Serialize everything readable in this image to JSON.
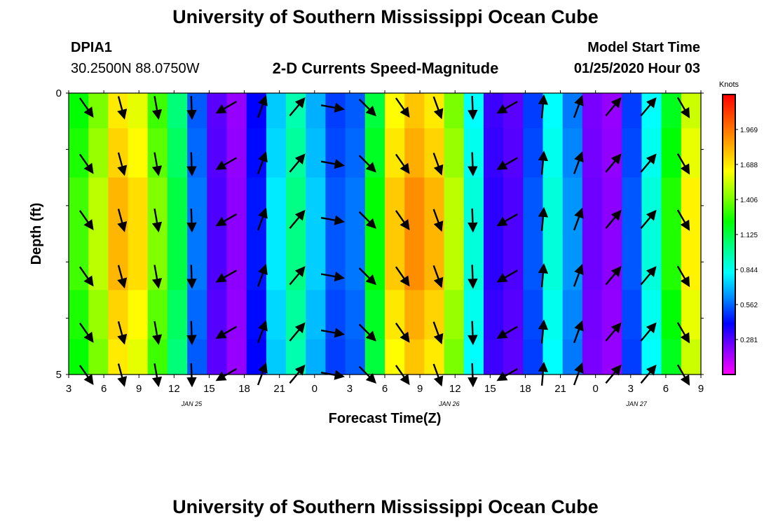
{
  "page": {
    "title_top": "University of Southern Mississippi Ocean Cube",
    "title_bottom": "University of Southern Mississippi Ocean Cube",
    "station_id": "DPIA1",
    "station_coords": "30.2500N 88.0750W",
    "plot_title": "2-D Currents Speed-Magnitude",
    "model_start_label": "Model Start Time",
    "model_start_value": "01/25/2020 Hour 03"
  },
  "chart_data": {
    "type": "heatmap",
    "title": "2-D Currents Speed-Magnitude",
    "xlabel": "Forecast Time(Z)",
    "ylabel": "Depth (ft)",
    "x_ticks": [
      "3",
      "6",
      "9",
      "12",
      "15",
      "18",
      "21",
      "0",
      "3",
      "6",
      "9",
      "12",
      "15",
      "18",
      "21",
      "0",
      "3",
      "6",
      "9"
    ],
    "x_range_hours": [
      0,
      54
    ],
    "date_labels": [
      {
        "text": "JAN 25",
        "at_hour": 10.5
      },
      {
        "text": "JAN 26",
        "at_hour": 32.5
      },
      {
        "text": "JAN 27",
        "at_hour": 48.5
      }
    ],
    "y_ticks": [
      "0",
      "5"
    ],
    "y_range_ft": [
      0,
      5
    ],
    "colorbar_units": "Knots",
    "colorbar_labels": [
      "1.969",
      "1.688",
      "1.406",
      "1.125",
      "0.844",
      "0.562",
      "0.281"
    ],
    "colorbar_range": [
      0,
      2.25
    ],
    "colors": [
      "#ff00ff",
      "#8800ff",
      "#0000ff",
      "#0088ff",
      "#00ffff",
      "#00ff88",
      "#00ff00",
      "#88ff00",
      "#ffff00",
      "#ffaa00",
      "#ff5500",
      "#ff0000"
    ],
    "depth_rows": [
      0.25,
      1.0,
      2.0,
      3.0,
      4.0,
      4.75
    ],
    "speed_columns_knots": [
      1.35,
      1.55,
      1.85,
      1.75,
      1.45,
      1.15,
      0.6,
      0.3,
      0.2,
      0.45,
      0.8,
      1.05,
      0.75,
      0.55,
      0.6,
      1.25,
      1.8,
      1.95,
      1.85,
      1.55,
      0.9,
      0.35,
      0.3,
      0.55,
      0.9,
      0.65,
      0.25,
      0.2,
      0.55,
      0.9,
      1.3,
      1.7
    ],
    "vector_hours": [
      0,
      3,
      6,
      9,
      12,
      15,
      18,
      21,
      24,
      27,
      30,
      33,
      36,
      39,
      42,
      45,
      48,
      51
    ],
    "vector_rows_depth_ft": [
      0.25,
      1.25,
      2.25,
      3.25,
      4.25,
      5.0
    ],
    "vector_directions_deg": [
      145,
      165,
      170,
      178,
      240,
      20,
      40,
      100,
      135,
      145,
      160,
      178,
      240,
      5,
      20,
      40,
      40,
      150
    ]
  }
}
